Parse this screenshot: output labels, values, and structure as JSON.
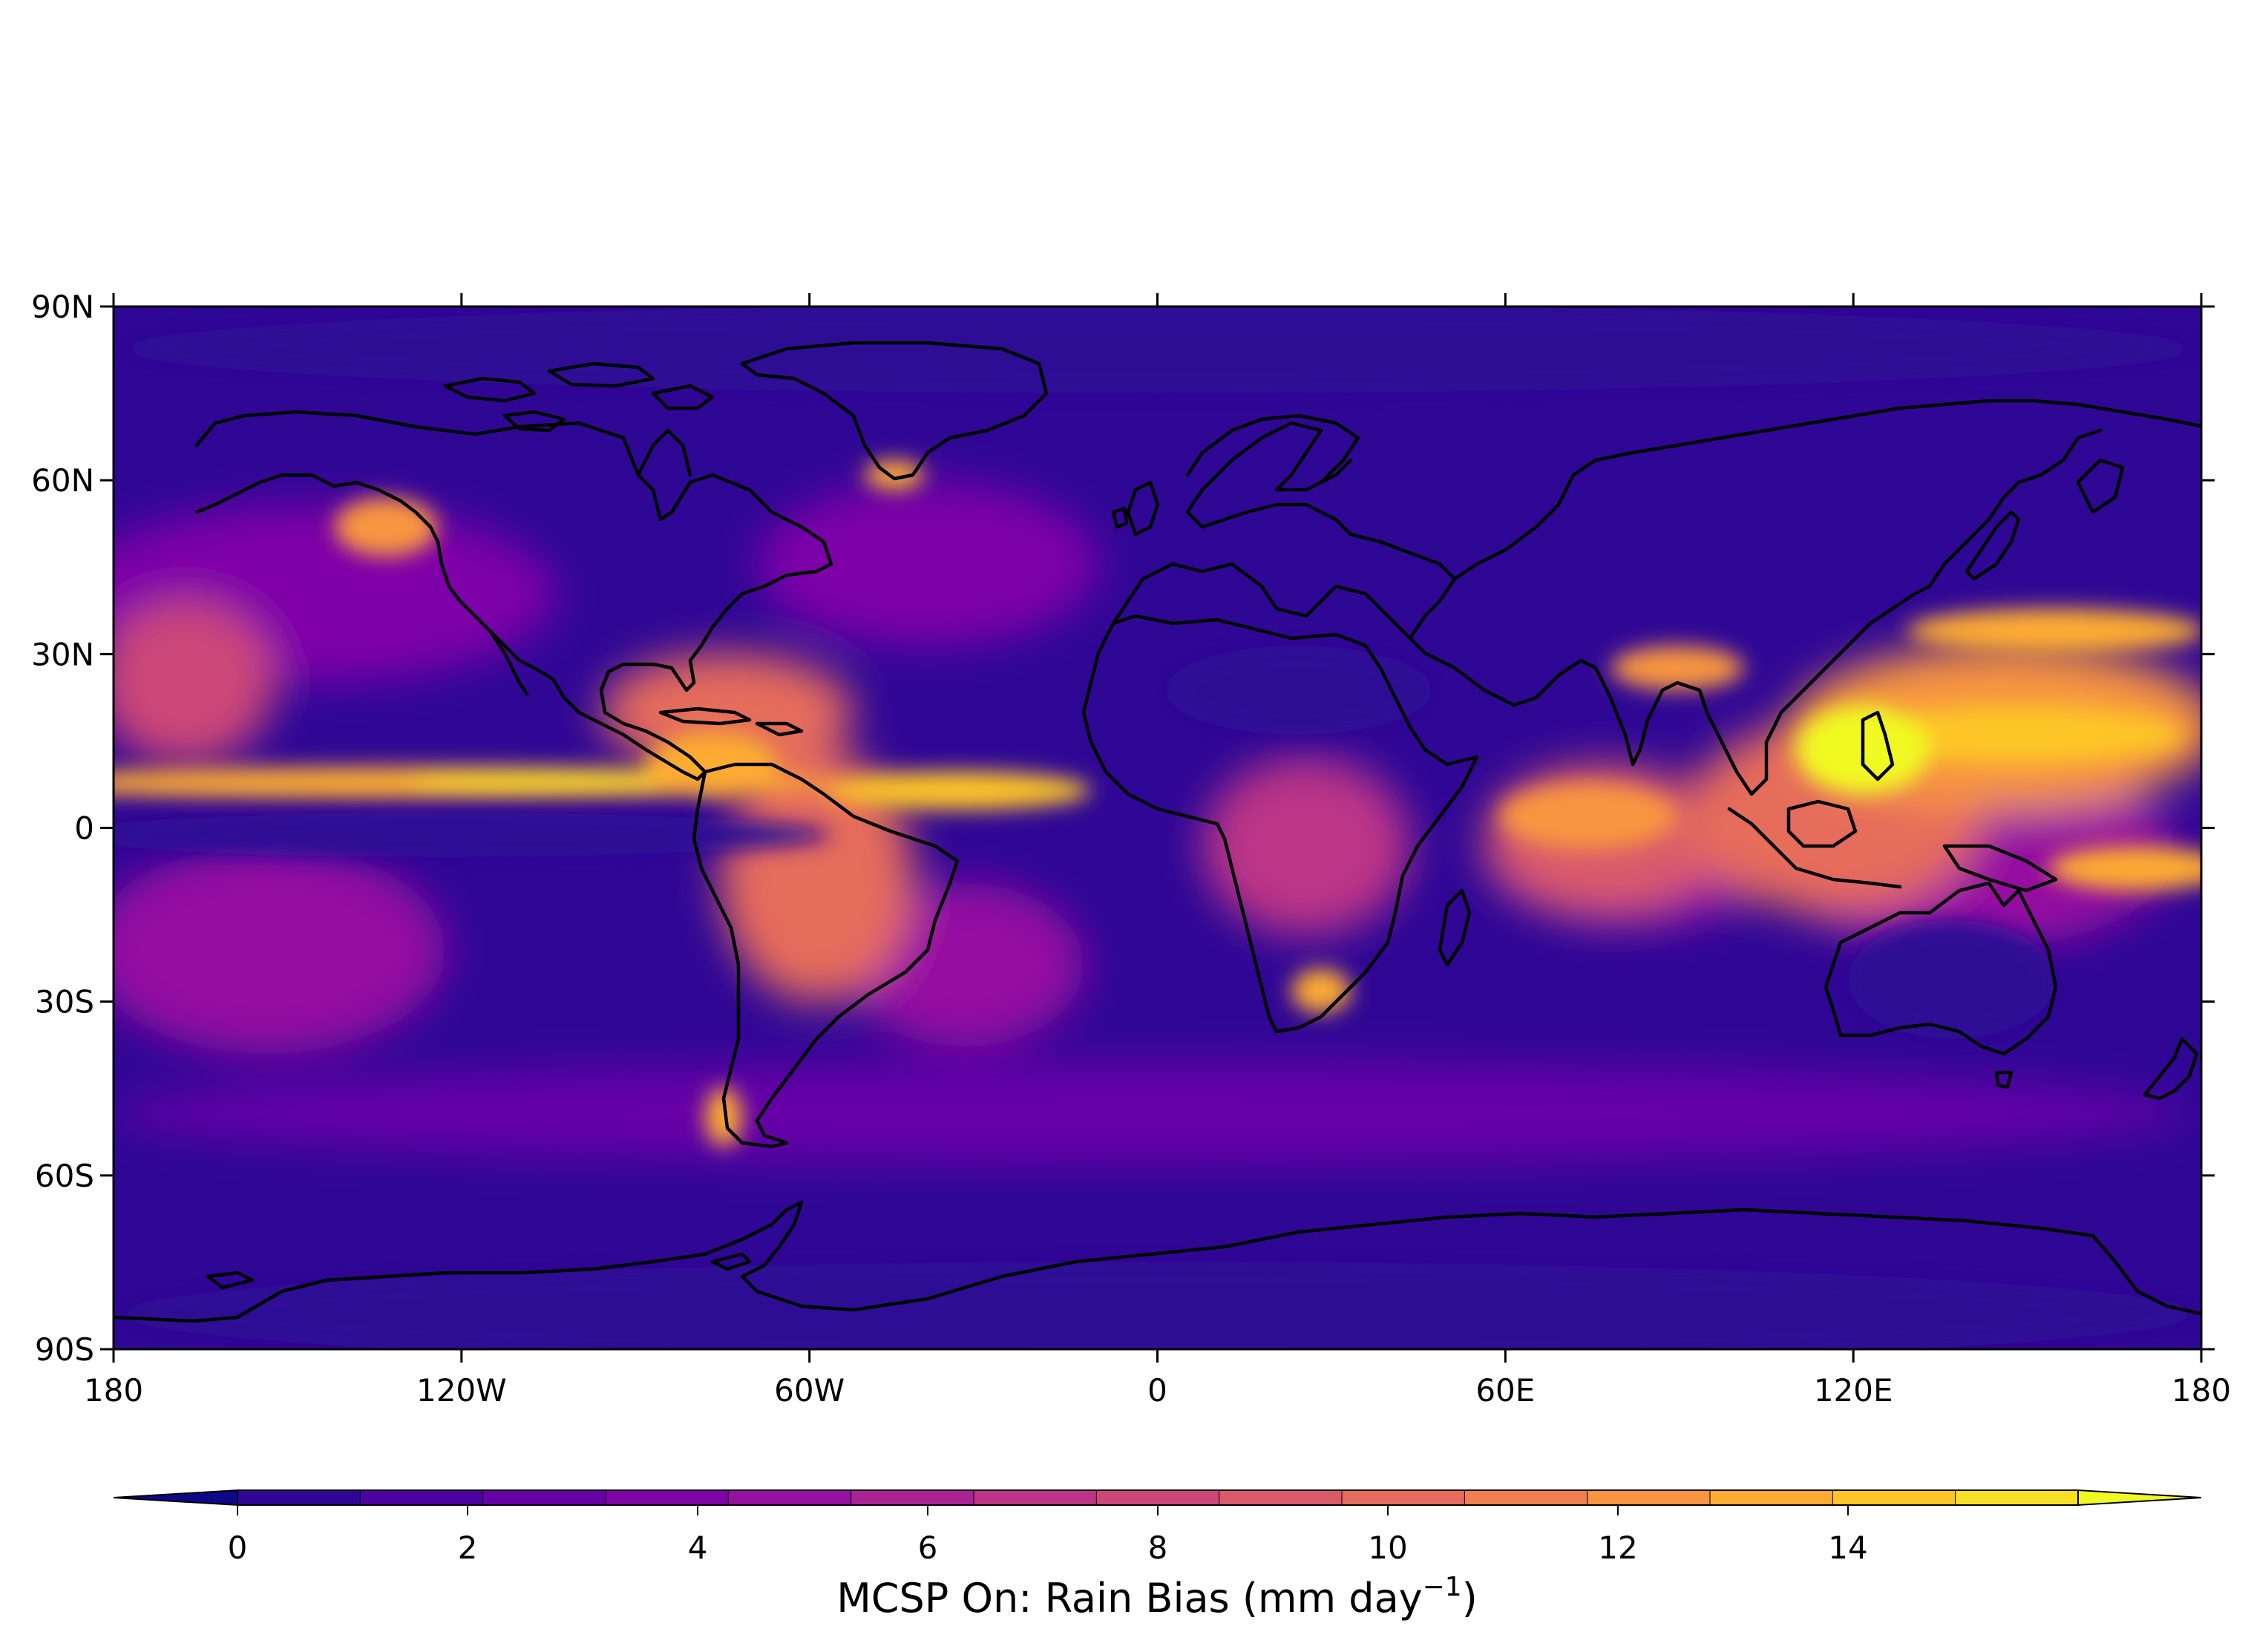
{
  "map": {
    "lon_ticks": [
      "180",
      "120W",
      "60W",
      "0",
      "60E",
      "120E",
      "180"
    ],
    "lat_ticks": [
      "90N",
      "60N",
      "30N",
      "0",
      "30S",
      "60S",
      "90S"
    ],
    "lon_range": [
      -180,
      180
    ],
    "lat_range": [
      -90,
      90
    ],
    "colormap": "plasma",
    "background_color": "#2f0795",
    "coastline_color": "#000000"
  },
  "colorbar": {
    "ticks": [
      "0",
      "2",
      "4",
      "6",
      "8",
      "10",
      "12",
      "14"
    ],
    "tick_values": [
      0,
      2,
      4,
      6,
      8,
      10,
      12,
      14
    ],
    "range": [
      0,
      16
    ],
    "levels": [
      0,
      1,
      2,
      3,
      4,
      5,
      6,
      7,
      8,
      9,
      10,
      11,
      12,
      13,
      14,
      15
    ],
    "extend": "both",
    "colors": [
      "#0d0887",
      "#2f0596",
      "#4c02a1",
      "#6600a7",
      "#7e03a8",
      "#9511a1",
      "#aa2395",
      "#bc3587",
      "#cc4778",
      "#da5a6a",
      "#e66c5c",
      "#f0804e",
      "#f89540",
      "#fdac33",
      "#fdc527",
      "#f8df25",
      "#f0f921"
    ],
    "label_prefix": "MCSP On: Rain Bias (mm day",
    "label_sup": "−1",
    "label_suffix": ")"
  }
}
